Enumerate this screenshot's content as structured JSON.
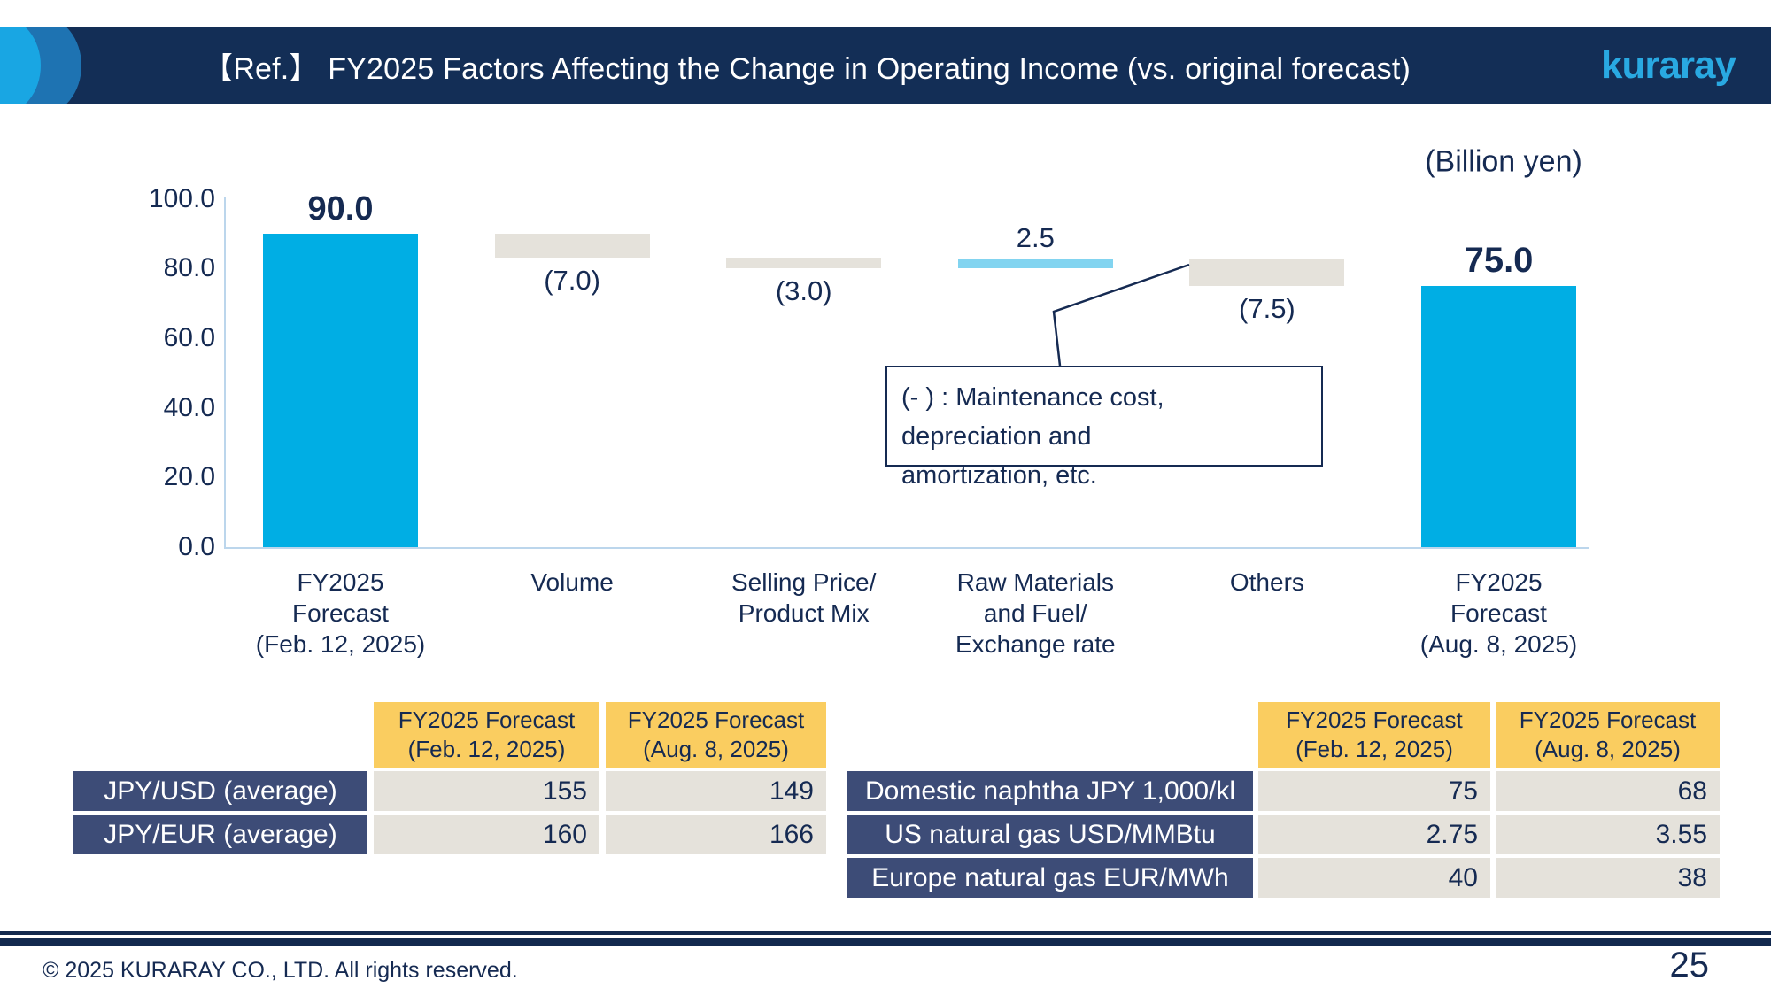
{
  "colors": {
    "navy_text": "#152A52",
    "header_bar": "#132E56",
    "title_text": "#FFFFFF",
    "logo_cyan": "#29A9E2",
    "circle_cyan": "#19A6E3",
    "circle_blue": "#1E73B2",
    "bar_total": "#00AEE4",
    "bar_increase": "#82D4F0",
    "bar_decrease": "#E5E2DB",
    "axis_line": "#BCD6EC",
    "table_header_yellow": "#FACD60",
    "table_rowlabel_navy": "#3D4C77",
    "table_value_gray": "#E5E2DB",
    "footer_rule_navy": "#12294E"
  },
  "header": {
    "title": "【Ref.】 FY2025 Factors Affecting the Change in Operating Income (vs. original forecast)",
    "logo_text": "kuraray"
  },
  "chart_data": {
    "type": "bar",
    "subtype": "waterfall",
    "unit_label": "(Billion yen)",
    "ylim": [
      0,
      100
    ],
    "y_ticks": [
      {
        "value": 100,
        "label": "100.0"
      },
      {
        "value": 80,
        "label": "80.0"
      },
      {
        "value": 60,
        "label": "60.0"
      },
      {
        "value": 40,
        "label": "40.0"
      },
      {
        "value": 20,
        "label": "20.0"
      },
      {
        "value": 0,
        "label": "0.0"
      }
    ],
    "categories": [
      {
        "name": "fy2025-forecast-feb",
        "lines": [
          "FY2025",
          "Forecast",
          "(Feb. 12, 2025)"
        ]
      },
      {
        "name": "volume",
        "lines": [
          "Volume"
        ]
      },
      {
        "name": "selling-price-product-mix",
        "lines": [
          "Selling Price/",
          "Product Mix"
        ]
      },
      {
        "name": "raw-materials-fuel-exchange",
        "lines": [
          "Raw Materials",
          "and Fuel/",
          "Exchange rate"
        ]
      },
      {
        "name": "others",
        "lines": [
          "Others"
        ]
      },
      {
        "name": "fy2025-forecast-aug",
        "lines": [
          "FY2025",
          "Forecast",
          "(Aug. 8, 2025)"
        ]
      }
    ],
    "bars": [
      {
        "name": "fy2025-forecast-feb",
        "kind": "total",
        "from": 0,
        "to": 90,
        "change": 0,
        "label": "90.0",
        "label_pos": "above",
        "label_bold": true
      },
      {
        "name": "volume",
        "kind": "decrease",
        "from": 83,
        "to": 90,
        "change": -7.0,
        "label": "(7.0)",
        "label_pos": "below",
        "label_bold": false
      },
      {
        "name": "selling-price-product-mix",
        "kind": "decrease",
        "from": 80,
        "to": 83,
        "change": -3.0,
        "label": "(3.0)",
        "label_pos": "below",
        "label_bold": false
      },
      {
        "name": "raw-materials-fuel-exchange",
        "kind": "increase",
        "from": 80,
        "to": 82.5,
        "change": 2.5,
        "label": "2.5",
        "label_pos": "above",
        "label_bold": false
      },
      {
        "name": "others",
        "kind": "decrease",
        "from": 75,
        "to": 82.5,
        "change": -7.5,
        "label": "(7.5)",
        "label_pos": "below",
        "label_bold": false
      },
      {
        "name": "fy2025-forecast-aug",
        "kind": "total",
        "from": 0,
        "to": 75,
        "change": 0,
        "label": "75.0",
        "label_pos": "above",
        "label_bold": true
      }
    ]
  },
  "annotation": {
    "line1": "(- ) :  Maintenance cost, depreciation and",
    "line2": "amortization, etc."
  },
  "tables": {
    "header_col1_lines": [
      "FY2025 Forecast",
      "(Feb. 12, 2025)"
    ],
    "header_col2_lines": [
      "FY2025 Forecast",
      "(Aug. 8, 2025)"
    ],
    "left": {
      "rows": [
        {
          "label": "JPY/USD (average)",
          "feb": "155",
          "aug": "149"
        },
        {
          "label": "JPY/EUR (average)",
          "feb": "160",
          "aug": "166"
        }
      ]
    },
    "right": {
      "rows": [
        {
          "label": "Domestic naphtha JPY 1,000/kl",
          "feb": "75",
          "aug": "68"
        },
        {
          "label": "US natural gas USD/MMBtu",
          "feb": "2.75",
          "aug": "3.55"
        },
        {
          "label": "Europe natural gas EUR/MWh",
          "feb": "40",
          "aug": "38"
        }
      ]
    }
  },
  "footer": {
    "copyright": "© 2025 KURARAY CO., LTD. All rights reserved.",
    "page_number": "25"
  }
}
